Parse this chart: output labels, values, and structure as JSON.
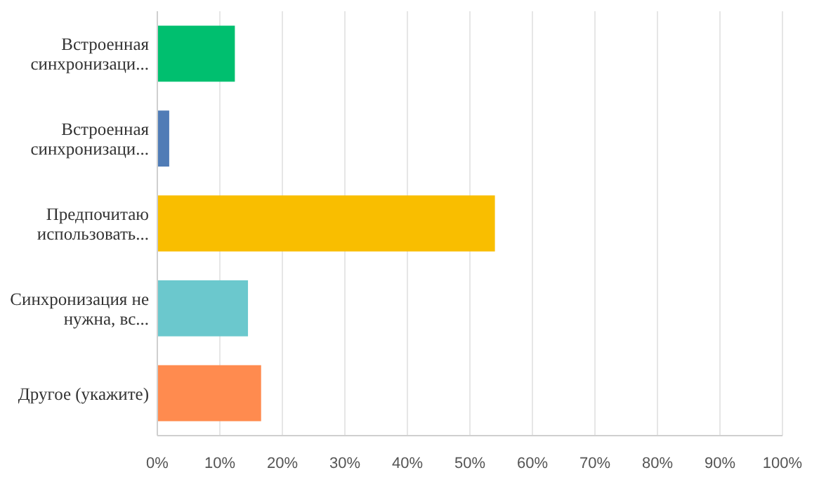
{
  "chart_data": {
    "type": "bar",
    "orientation": "horizontal",
    "categories": [
      "Встроенная синхронизаци...",
      "Встроенная синхронизаци...",
      "Предпочитаю использовать...",
      "Синхронизация не нужна, вс...",
      "Другое (укажите)"
    ],
    "values": [
      12.4,
      1.9,
      54.0,
      14.5,
      16.6
    ],
    "colors": [
      "#00bf6f",
      "#507cb6",
      "#f9be00",
      "#6bc8cd",
      "#ff8b4f"
    ],
    "xlim": [
      0,
      100
    ],
    "xticks": [
      {
        "value": 0,
        "label": "0%"
      },
      {
        "value": 10,
        "label": "10%"
      },
      {
        "value": 20,
        "label": "20%"
      },
      {
        "value": 30,
        "label": "30%"
      },
      {
        "value": 40,
        "label": "40%"
      },
      {
        "value": 50,
        "label": "50%"
      },
      {
        "value": 60,
        "label": "60%"
      },
      {
        "value": 70,
        "label": "70%"
      },
      {
        "value": 80,
        "label": "80%"
      },
      {
        "value": 90,
        "label": "90%"
      },
      {
        "value": 100,
        "label": "100%"
      }
    ],
    "grid": "x"
  }
}
